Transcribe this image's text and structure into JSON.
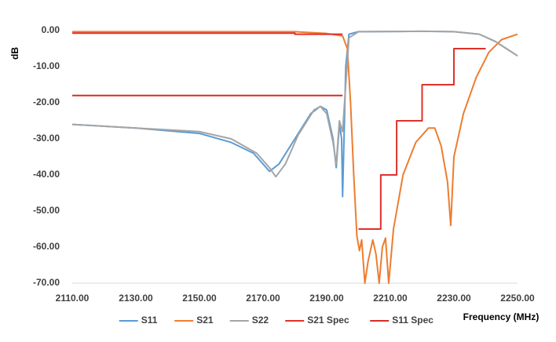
{
  "chart_data": {
    "type": "line",
    "x_label": "Frequency (MHz)",
    "y_label": "dB",
    "xlim": [
      2110,
      2250
    ],
    "xticks": [
      {
        "value": 2110,
        "label": "2110.00"
      },
      {
        "value": 2130,
        "label": "2130.00"
      },
      {
        "value": 2150,
        "label": "2150.00"
      },
      {
        "value": 2170,
        "label": "2170.00"
      },
      {
        "value": 2190,
        "label": "2190.00"
      },
      {
        "value": 2210,
        "label": "2210.00"
      },
      {
        "value": 2230,
        "label": "2230.00"
      },
      {
        "value": 2250,
        "label": "2250.00"
      }
    ],
    "ylim": [
      -70,
      0
    ],
    "yticks": [
      {
        "value": 0,
        "label": "0.00"
      },
      {
        "value": -10,
        "label": "-10.00"
      },
      {
        "value": -20,
        "label": "-20.00"
      },
      {
        "value": -30,
        "label": "-30.00"
      },
      {
        "value": -40,
        "label": "-40.00"
      },
      {
        "value": -50,
        "label": "-50.00"
      },
      {
        "value": -60,
        "label": "-60.00"
      },
      {
        "value": -70,
        "label": "-70.00"
      }
    ],
    "grid": false,
    "legend": "bottom",
    "series": [
      {
        "name": "S11",
        "color": "#5b9bd5",
        "x": [
          2110,
          2130,
          2150,
          2160,
          2167,
          2172,
          2175,
          2180,
          2185,
          2188,
          2190,
          2192,
          2193,
          2194,
          2194.7,
          2195,
          2196,
          2197,
          2200,
          2220,
          2230,
          2238,
          2243,
          2250
        ],
        "values": [
          -26,
          -27,
          -28.5,
          -31,
          -34,
          -39,
          -37,
          -30,
          -23,
          -21,
          -22,
          -30,
          -38,
          -26,
          -30,
          -46,
          -10,
          -1,
          -0.3,
          -0.2,
          -0.3,
          -1,
          -3,
          -7
        ]
      },
      {
        "name": "S21",
        "color": "#ed7d31",
        "x": [
          2110,
          2180,
          2190,
          2195,
          2196.5,
          2197.5,
          2198.5,
          2199.5,
          2200.3,
          2201,
          2202,
          2203,
          2204.5,
          2205.5,
          2206.5,
          2207.5,
          2208.5,
          2209.5,
          2211,
          2214,
          2218,
          2222,
          2224,
          2226,
          2228,
          2229,
          2230,
          2233,
          2237,
          2241,
          2245,
          2250
        ],
        "values": [
          -0.3,
          -0.3,
          -0.8,
          -1.5,
          -5,
          -20,
          -40,
          -57,
          -61,
          -58,
          -70,
          -64,
          -58,
          -62,
          -70,
          -60,
          -57.5,
          -70,
          -55,
          -40,
          -31,
          -27,
          -27,
          -32,
          -42,
          -54,
          -35,
          -23,
          -13,
          -6,
          -2.5,
          -1
        ]
      },
      {
        "name": "S22",
        "color": "#a5a5a5",
        "x": [
          2110,
          2130,
          2150,
          2160,
          2168,
          2172,
          2174,
          2177,
          2181,
          2186,
          2188,
          2190,
          2192,
          2193,
          2194,
          2195,
          2196,
          2197,
          2200,
          2220,
          2230,
          2238,
          2243,
          2250
        ],
        "values": [
          -26,
          -27,
          -28,
          -30,
          -34,
          -38,
          -40.5,
          -37,
          -29,
          -22,
          -21,
          -23,
          -31,
          -37,
          -25,
          -28,
          -15,
          -2,
          -0.3,
          -0.2,
          -0.3,
          -1,
          -3,
          -7
        ]
      },
      {
        "name": "S21 Spec",
        "color": "#e0302a",
        "x": [
          2110,
          2180,
          2180,
          2195,
          2195,
          2200,
          2207,
          2207,
          2212,
          2212,
          2220,
          2220,
          2230,
          2230,
          2240
        ],
        "values": [
          -0.7,
          -0.7,
          -1,
          -1,
          null,
          -55,
          -55,
          -40,
          -40,
          -25,
          -25,
          -15,
          -15,
          -5,
          -5
        ]
      },
      {
        "name": "S11 Spec",
        "color": "#d62c28",
        "x": [
          2110,
          2195
        ],
        "values": [
          -18,
          -18
        ]
      }
    ]
  }
}
